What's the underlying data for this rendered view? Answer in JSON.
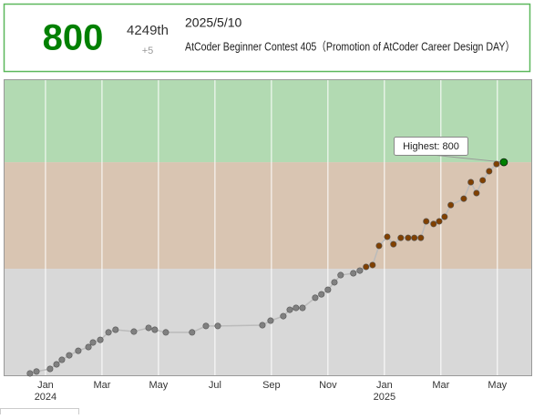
{
  "header": {
    "rating": "800",
    "rank": "4249th",
    "diff": "+5",
    "date": "2025/5/10",
    "contest": "AtCoder Beginner Contest 405（Promotion of AtCoder Career Design DAY）"
  },
  "chart_data": {
    "type": "line",
    "annotation": "Highest: 800",
    "xlim": [
      -1.45,
      17.2
    ],
    "ylim": [
      0,
      1108
    ],
    "xticks": [
      {
        "value": 0,
        "label": "Jan",
        "sublabel": "2024"
      },
      {
        "value": 2,
        "label": "Mar"
      },
      {
        "value": 4,
        "label": "May"
      },
      {
        "value": 6,
        "label": "Jul"
      },
      {
        "value": 8,
        "label": "Sep"
      },
      {
        "value": 10,
        "label": "Nov"
      },
      {
        "value": 12,
        "label": "Jan",
        "sublabel": "2025"
      },
      {
        "value": 14,
        "label": "Mar"
      },
      {
        "value": 16,
        "label": "May"
      }
    ],
    "bands": [
      {
        "from": 0,
        "to": 400,
        "color": "#d8d8d8",
        "point_color": "#808080"
      },
      {
        "from": 400,
        "to": 800,
        "color": "#d9c5b2",
        "point_color": "#804000"
      },
      {
        "from": 800,
        "to": 1200,
        "color": "#b2dab2",
        "point_color": "#008000"
      }
    ],
    "line_color": "#bbbbbb",
    "x": [
      -0.55,
      -0.32,
      0.16,
      0.39,
      0.58,
      0.84,
      1.16,
      1.52,
      1.68,
      1.94,
      2.23,
      2.48,
      3.13,
      3.65,
      3.87,
      4.26,
      5.19,
      5.68,
      6.1,
      7.68,
      7.97,
      8.42,
      8.65,
      8.87,
      9.1,
      9.55,
      9.77,
      10.0,
      10.23,
      10.45,
      10.9,
      11.13,
      11.35,
      11.58,
      11.81,
      12.1,
      12.32,
      12.58,
      12.84,
      13.06,
      13.29,
      13.48,
      13.74,
      13.94,
      14.13,
      14.35,
      14.81,
      15.06,
      15.26,
      15.48,
      15.71,
      15.97,
      16.23
    ],
    "values": [
      7,
      14,
      24,
      41,
      58,
      75,
      92,
      106,
      123,
      133,
      161,
      171,
      164,
      178,
      171,
      161,
      161,
      185,
      185,
      188,
      205,
      222,
      246,
      253,
      253,
      291,
      304,
      321,
      349,
      376,
      383,
      393,
      407,
      414,
      486,
      520,
      492,
      516,
      516,
      516,
      516,
      578,
      568,
      578,
      595,
      639,
      663,
      725,
      684,
      732,
      766,
      793,
      800
    ]
  }
}
